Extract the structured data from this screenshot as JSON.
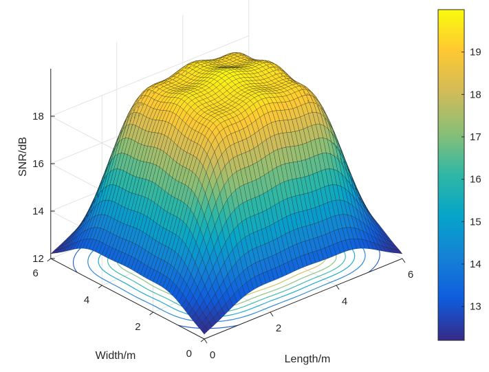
{
  "chart_data": {
    "type": "surface",
    "title": "",
    "colormap": "parula",
    "colormap_colors": [
      "#352a87",
      "#0f5cdd",
      "#1481d6",
      "#06a4ca",
      "#2eb7a4",
      "#87bf77",
      "#d1bb59",
      "#fec832",
      "#f9fb0e"
    ],
    "surface_edge_color": "#000000",
    "contour_projection": true,
    "grid": true,
    "x_axis": {
      "label": "Length/m",
      "range": [
        0,
        6
      ],
      "ticks": [
        "0",
        "2",
        "4",
        "6"
      ]
    },
    "y_axis": {
      "label": "Width/m",
      "range": [
        0,
        6
      ],
      "ticks": [
        "0",
        "2",
        "4",
        "6"
      ]
    },
    "z_axis": {
      "label": "SNR/dB",
      "range": [
        12,
        20
      ],
      "ticks": [
        "12",
        "14",
        "16",
        "18"
      ]
    },
    "colorbar": {
      "range": [
        12.2,
        20
      ],
      "ticks": [
        "13",
        "14",
        "15",
        "16",
        "17",
        "18",
        "19"
      ]
    },
    "z_min_at_corners": 12.2,
    "z_max": 19.9,
    "peaks_xy": [
      [
        1.5,
        1.5
      ],
      [
        1.5,
        3
      ],
      [
        1.5,
        4.5
      ],
      [
        3,
        1.5
      ],
      [
        3,
        3
      ],
      [
        3,
        4.5
      ],
      [
        4.5,
        1.5
      ],
      [
        4.5,
        3
      ],
      [
        4.5,
        4.5
      ]
    ]
  }
}
